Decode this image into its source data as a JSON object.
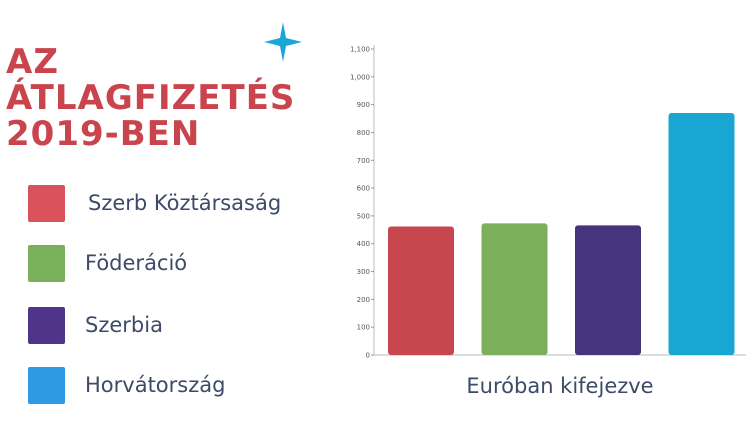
{
  "header": {
    "title_lines": [
      "AZ",
      "ÁTLAGFIZETÉS",
      "2019-BEN"
    ],
    "title_color": "#c9444d",
    "decoration_icon": "star-icon",
    "decoration_color": "#1aa6d6"
  },
  "legend": {
    "items": [
      {
        "label": "Szerb Köztársaság",
        "color": "#d9535d"
      },
      {
        "label": "Föderáció",
        "color": "#79b05a"
      },
      {
        "label": "Szerbia",
        "color": "#4f3589"
      },
      {
        "label": "Horvátország",
        "color": "#2e9ae6"
      }
    ]
  },
  "chart_data": {
    "type": "bar",
    "categories": [
      "Szerb Köztársaság",
      "Föderáció",
      "Szerbia",
      "Horvátország"
    ],
    "values": [
      462,
      473,
      466,
      870
    ],
    "colors": [
      "#c8474f",
      "#7caf5a",
      "#46347e",
      "#1aa6d3"
    ],
    "xlabel": "Euróban kifejezve",
    "ylim": [
      0,
      1100
    ],
    "yticks": [
      "0",
      "100",
      "200",
      "300",
      "400",
      "500",
      "600",
      "700",
      "800",
      "900",
      "1,000",
      "1,100"
    ],
    "grid": false
  }
}
